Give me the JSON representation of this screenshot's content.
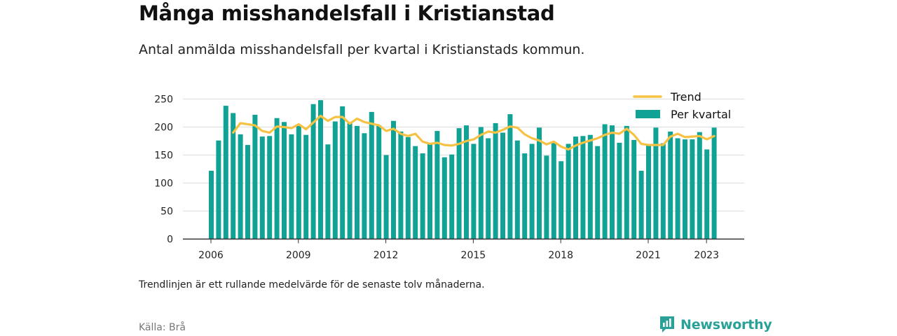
{
  "header": {
    "title": "Många misshandelsfall i Kristianstad",
    "subtitle": "Antal anmälda misshandelsfall per kvartal i Kristianstads kommun."
  },
  "footer": {
    "note": "Trendlinjen är ett rullande medelvärde för de senaste tolv månaderna.",
    "source": "Källa: Brå",
    "brand": "Newsworthy"
  },
  "colors": {
    "bars": "#11a296",
    "trend": "#f6c244",
    "grid": "#dddddd",
    "axis": "#333333",
    "brand": "#2aa198"
  },
  "chart_data": {
    "type": "bar",
    "x_start": "2006 Q1",
    "x_ticks": [
      "2006",
      "2009",
      "2012",
      "2015",
      "2018",
      "2021",
      "2023"
    ],
    "y_ticks": [
      0,
      50,
      100,
      150,
      200,
      250
    ],
    "ylim": [
      0,
      250
    ],
    "grid": true,
    "legend_position": "top-right",
    "series": [
      {
        "name": "Per kvartal",
        "type": "bar",
        "values": [
          122,
          176,
          238,
          225,
          187,
          168,
          222,
          183,
          184,
          216,
          209,
          187,
          202,
          186,
          241,
          248,
          169,
          210,
          237,
          207,
          202,
          189,
          227,
          203,
          150,
          211,
          192,
          182,
          166,
          153,
          170,
          193,
          146,
          151,
          198,
          203,
          170,
          200,
          180,
          207,
          190,
          223,
          176,
          153,
          170,
          199,
          149,
          172,
          139,
          170,
          183,
          184,
          186,
          166,
          205,
          203,
          172,
          202,
          177,
          122,
          168,
          199,
          171,
          192,
          180,
          178,
          178,
          191,
          160,
          199
        ]
      },
      {
        "name": "Trend",
        "type": "line",
        "values": [
          null,
          null,
          null,
          190,
          207,
          205,
          203,
          193,
          190,
          201,
          200,
          198,
          205,
          196,
          208,
          220,
          211,
          218,
          218,
          206,
          215,
          209,
          206,
          203,
          193,
          197,
          188,
          184,
          188,
          174,
          170,
          172,
          168,
          167,
          170,
          175,
          178,
          186,
          192,
          190,
          195,
          201,
          199,
          187,
          180,
          176,
          169,
          174,
          165,
          160,
          167,
          172,
          176,
          180,
          186,
          190,
          188,
          197,
          186,
          170,
          168,
          168,
          168,
          183,
          188,
          182,
          183,
          184,
          178,
          184
        ]
      }
    ]
  }
}
